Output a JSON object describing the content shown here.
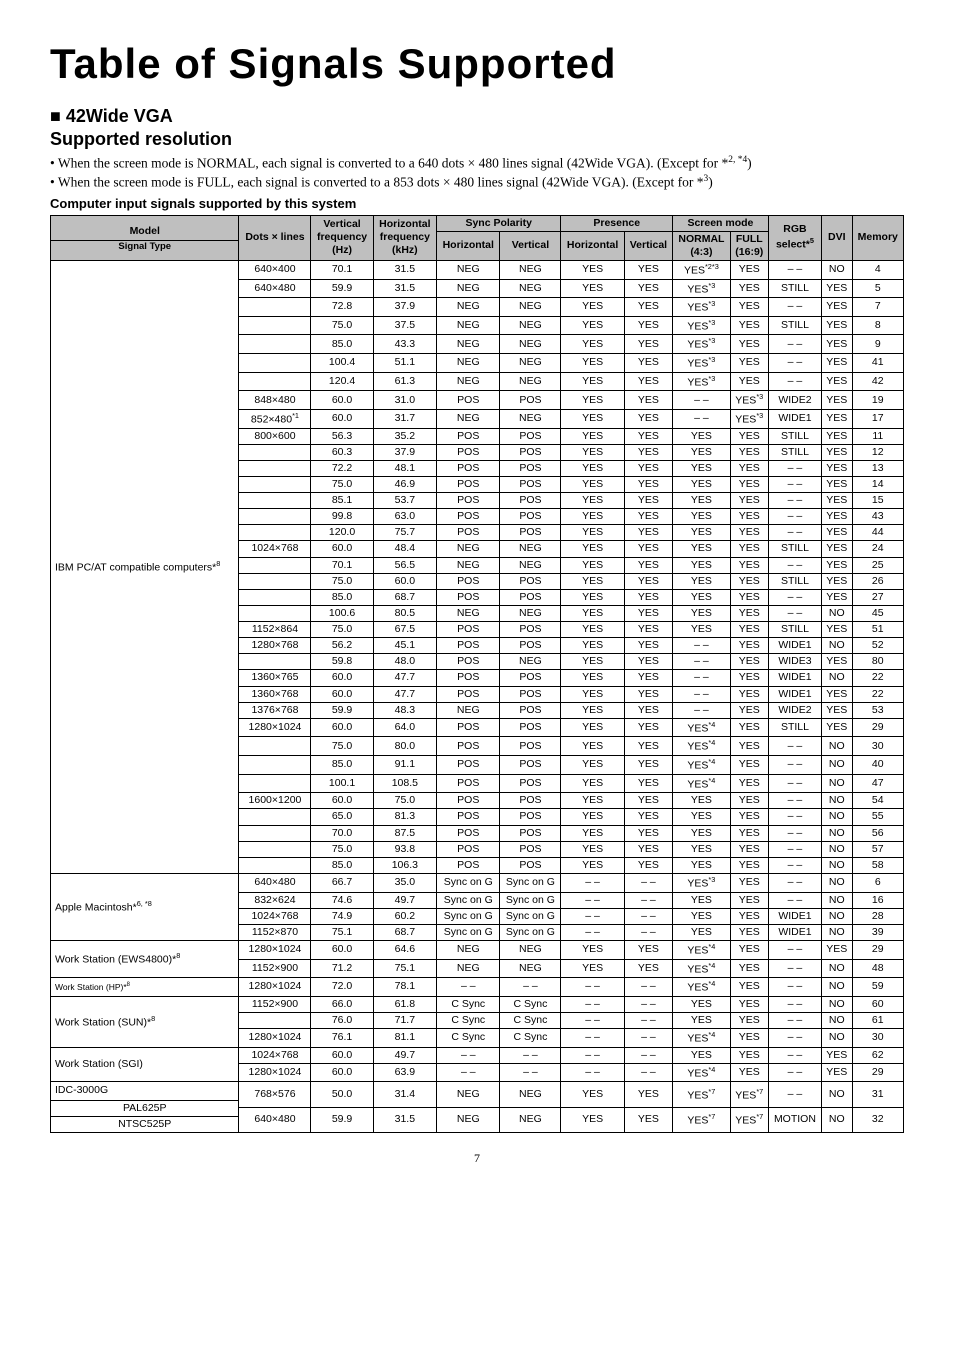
{
  "pageTitle": "Table of Signals Supported",
  "sectionHeading1": "■ 42Wide VGA",
  "sectionHeading2": "Supported resolution",
  "bullet1_a": "• When the screen mode is NORMAL, each signal is converted to a 640 dots × 480 lines signal (42Wide VGA). (Except for *",
  "bullet1_b": "2, *4",
  "bullet1_c": ")",
  "bullet2_a": "• When the screen mode is FULL, each signal is converted to a 853 dots × 480 lines signal  (42Wide VGA). (Except for *",
  "bullet2_b": "3",
  "bullet2_c": ")",
  "subline": "Computer input signals supported by this system",
  "headers": {
    "model": "Model",
    "signalType": "Signal Type",
    "dots": "Dots × lines",
    "vFreq": "Vertical",
    "vFreq2": "frequency",
    "vFreq3": "(Hz)",
    "hFreq": "Horizontal",
    "hFreq2": "frequency",
    "hFreq3": "(kHz)",
    "syncPol": "Sync Polarity",
    "syncH": "Horizontal",
    "syncV": "Vertical",
    "presence": "Presence",
    "presH": "Horizontal",
    "presV": "Vertical",
    "screenMode": "Screen mode",
    "normal": "NORMAL",
    "normal2": "(4:3)",
    "full": "FULL",
    "full2": "(16:9)",
    "rgb": "RGB",
    "rgb2a": "select*",
    "rgb2b": "5",
    "dvi": "DVI",
    "memory": "Memory"
  },
  "modelLabels": {
    "ibm": "IBM PC/AT compatible computers*",
    "ibmSup": "8",
    "apple": "Apple Macintosh*",
    "appleSup": "6, *8",
    "ws1": "Work Station (EWS4800)*",
    "ws1Sup": "8",
    "ws2": "Work Station (HP)*",
    "ws2Sup": "8",
    "ws3": "Work Station (SUN)*",
    "ws3Sup": "8",
    "ws4": "Work Station (SGI)",
    "idc": "IDC-3000G",
    "pal": "PAL625P",
    "ntsc": "NTSC525P"
  },
  "pageNum": "7",
  "rows": [
    {
      "dots": "640×400",
      "vf": "70.1",
      "hf": "31.5",
      "sh": "NEG",
      "sv": "NEG",
      "ph": "YES",
      "pv": "YES",
      "nr": "YES*2*3",
      "nrSup": true,
      "fl": "YES",
      "rgb": "– –",
      "dvi": "NO",
      "mem": "4"
    },
    {
      "dots": "640×480",
      "vf": "59.9",
      "hf": "31.5",
      "sh": "NEG",
      "sv": "NEG",
      "ph": "YES",
      "pv": "YES",
      "nr": "YES*3",
      "nrSup": true,
      "fl": "YES",
      "rgb": "STILL",
      "dvi": "YES",
      "mem": "5"
    },
    {
      "dots": "",
      "vf": "72.8",
      "hf": "37.9",
      "sh": "NEG",
      "sv": "NEG",
      "ph": "YES",
      "pv": "YES",
      "nr": "YES*3",
      "nrSup": true,
      "fl": "YES",
      "rgb": "– –",
      "dvi": "YES",
      "mem": "7"
    },
    {
      "dots": "",
      "vf": "75.0",
      "hf": "37.5",
      "sh": "NEG",
      "sv": "NEG",
      "ph": "YES",
      "pv": "YES",
      "nr": "YES*3",
      "nrSup": true,
      "fl": "YES",
      "rgb": "STILL",
      "dvi": "YES",
      "mem": "8"
    },
    {
      "dots": "",
      "vf": "85.0",
      "hf": "43.3",
      "sh": "NEG",
      "sv": "NEG",
      "ph": "YES",
      "pv": "YES",
      "nr": "YES*3",
      "nrSup": true,
      "fl": "YES",
      "rgb": "– –",
      "dvi": "YES",
      "mem": "9"
    },
    {
      "dots": "",
      "vf": "100.4",
      "hf": "51.1",
      "sh": "NEG",
      "sv": "NEG",
      "ph": "YES",
      "pv": "YES",
      "nr": "YES*3",
      "nrSup": true,
      "fl": "YES",
      "rgb": "– –",
      "dvi": "YES",
      "mem": "41"
    },
    {
      "dots": "",
      "vf": "120.4",
      "hf": "61.3",
      "sh": "NEG",
      "sv": "NEG",
      "ph": "YES",
      "pv": "YES",
      "nr": "YES*3",
      "nrSup": true,
      "fl": "YES",
      "rgb": "– –",
      "dvi": "YES",
      "mem": "42"
    },
    {
      "dots": "848×480",
      "vf": "60.0",
      "hf": "31.0",
      "sh": "POS",
      "sv": "POS",
      "ph": "YES",
      "pv": "YES",
      "nr": "– –",
      "fl": "YES*3",
      "flSup": true,
      "rgb": "WIDE2",
      "dvi": "YES",
      "mem": "19"
    },
    {
      "dots": "852×480*1",
      "dotsSup": true,
      "vf": "60.0",
      "hf": "31.7",
      "sh": "NEG",
      "sv": "NEG",
      "ph": "YES",
      "pv": "YES",
      "nr": "– –",
      "fl": "YES*3",
      "flSup": true,
      "rgb": "WIDE1",
      "dvi": "YES",
      "mem": "17"
    },
    {
      "dots": "800×600",
      "vf": "56.3",
      "hf": "35.2",
      "sh": "POS",
      "sv": "POS",
      "ph": "YES",
      "pv": "YES",
      "nr": "YES",
      "fl": "YES",
      "rgb": "STILL",
      "dvi": "YES",
      "mem": "11"
    },
    {
      "dots": "",
      "vf": "60.3",
      "hf": "37.9",
      "sh": "POS",
      "sv": "POS",
      "ph": "YES",
      "pv": "YES",
      "nr": "YES",
      "fl": "YES",
      "rgb": "STILL",
      "dvi": "YES",
      "mem": "12"
    },
    {
      "dots": "",
      "vf": "72.2",
      "hf": "48.1",
      "sh": "POS",
      "sv": "POS",
      "ph": "YES",
      "pv": "YES",
      "nr": "YES",
      "fl": "YES",
      "rgb": "– –",
      "dvi": "YES",
      "mem": "13"
    },
    {
      "dots": "",
      "vf": "75.0",
      "hf": "46.9",
      "sh": "POS",
      "sv": "POS",
      "ph": "YES",
      "pv": "YES",
      "nr": "YES",
      "fl": "YES",
      "rgb": "– –",
      "dvi": "YES",
      "mem": "14"
    },
    {
      "dots": "",
      "vf": "85.1",
      "hf": "53.7",
      "sh": "POS",
      "sv": "POS",
      "ph": "YES",
      "pv": "YES",
      "nr": "YES",
      "fl": "YES",
      "rgb": "– –",
      "dvi": "YES",
      "mem": "15"
    },
    {
      "dots": "",
      "vf": "99.8",
      "hf": "63.0",
      "sh": "POS",
      "sv": "POS",
      "ph": "YES",
      "pv": "YES",
      "nr": "YES",
      "fl": "YES",
      "rgb": "– –",
      "dvi": "YES",
      "mem": "43"
    },
    {
      "dots": "",
      "vf": "120.0",
      "hf": "75.7",
      "sh": "POS",
      "sv": "POS",
      "ph": "YES",
      "pv": "YES",
      "nr": "YES",
      "fl": "YES",
      "rgb": "– –",
      "dvi": "YES",
      "mem": "44"
    },
    {
      "dots": "1024×768",
      "vf": "60.0",
      "hf": "48.4",
      "sh": "NEG",
      "sv": "NEG",
      "ph": "YES",
      "pv": "YES",
      "nr": "YES",
      "fl": "YES",
      "rgb": "STILL",
      "dvi": "YES",
      "mem": "24"
    },
    {
      "dots": "",
      "vf": "70.1",
      "hf": "56.5",
      "sh": "NEG",
      "sv": "NEG",
      "ph": "YES",
      "pv": "YES",
      "nr": "YES",
      "fl": "YES",
      "rgb": "– –",
      "dvi": "YES",
      "mem": "25"
    },
    {
      "dots": "",
      "vf": "75.0",
      "hf": "60.0",
      "sh": "POS",
      "sv": "POS",
      "ph": "YES",
      "pv": "YES",
      "nr": "YES",
      "fl": "YES",
      "rgb": "STILL",
      "dvi": "YES",
      "mem": "26"
    },
    {
      "dots": "",
      "vf": "85.0",
      "hf": "68.7",
      "sh": "POS",
      "sv": "POS",
      "ph": "YES",
      "pv": "YES",
      "nr": "YES",
      "fl": "YES",
      "rgb": "– –",
      "dvi": "YES",
      "mem": "27"
    },
    {
      "dots": "",
      "vf": "100.6",
      "hf": "80.5",
      "sh": "NEG",
      "sv": "NEG",
      "ph": "YES",
      "pv": "YES",
      "nr": "YES",
      "fl": "YES",
      "rgb": "– –",
      "dvi": "NO",
      "mem": "45"
    },
    {
      "dots": "1152×864",
      "vf": "75.0",
      "hf": "67.5",
      "sh": "POS",
      "sv": "POS",
      "ph": "YES",
      "pv": "YES",
      "nr": "YES",
      "fl": "YES",
      "rgb": "STILL",
      "dvi": "YES",
      "mem": "51"
    },
    {
      "dots": "1280×768",
      "vf": "56.2",
      "hf": "45.1",
      "sh": "POS",
      "sv": "POS",
      "ph": "YES",
      "pv": "YES",
      "nr": "– –",
      "fl": "YES",
      "rgb": "WIDE1",
      "dvi": "NO",
      "mem": "52"
    },
    {
      "dots": "",
      "vf": "59.8",
      "hf": "48.0",
      "sh": "POS",
      "sv": "NEG",
      "ph": "YES",
      "pv": "YES",
      "nr": "– –",
      "fl": "YES",
      "rgb": "WIDE3",
      "dvi": "YES",
      "mem": "80"
    },
    {
      "dots": "1360×765",
      "vf": "60.0",
      "hf": "47.7",
      "sh": "POS",
      "sv": "POS",
      "ph": "YES",
      "pv": "YES",
      "nr": "– –",
      "fl": "YES",
      "rgb": "WIDE1",
      "dvi": "NO",
      "mem": "22"
    },
    {
      "dots": "1360×768",
      "vf": "60.0",
      "hf": "47.7",
      "sh": "POS",
      "sv": "POS",
      "ph": "YES",
      "pv": "YES",
      "nr": "– –",
      "fl": "YES",
      "rgb": "WIDE1",
      "dvi": "YES",
      "mem": "22"
    },
    {
      "dots": "1376×768",
      "vf": "59.9",
      "hf": "48.3",
      "sh": "NEG",
      "sv": "POS",
      "ph": "YES",
      "pv": "YES",
      "nr": "– –",
      "fl": "YES",
      "rgb": "WIDE2",
      "dvi": "YES",
      "mem": "53"
    },
    {
      "dots": "1280×1024",
      "vf": "60.0",
      "hf": "64.0",
      "sh": "POS",
      "sv": "POS",
      "ph": "YES",
      "pv": "YES",
      "nr": "YES*4",
      "nrSup": true,
      "fl": "YES",
      "rgb": "STILL",
      "dvi": "YES",
      "mem": "29"
    },
    {
      "dots": "",
      "vf": "75.0",
      "hf": "80.0",
      "sh": "POS",
      "sv": "POS",
      "ph": "YES",
      "pv": "YES",
      "nr": "YES*4",
      "nrSup": true,
      "fl": "YES",
      "rgb": "– –",
      "dvi": "NO",
      "mem": "30"
    },
    {
      "dots": "",
      "vf": "85.0",
      "hf": "91.1",
      "sh": "POS",
      "sv": "POS",
      "ph": "YES",
      "pv": "YES",
      "nr": "YES*4",
      "nrSup": true,
      "fl": "YES",
      "rgb": "– –",
      "dvi": "NO",
      "mem": "40"
    },
    {
      "dots": "",
      "vf": "100.1",
      "hf": "108.5",
      "sh": "POS",
      "sv": "POS",
      "ph": "YES",
      "pv": "YES",
      "nr": "YES*4",
      "nrSup": true,
      "fl": "YES",
      "rgb": "– –",
      "dvi": "NO",
      "mem": "47"
    },
    {
      "dots": "1600×1200",
      "vf": "60.0",
      "hf": "75.0",
      "sh": "POS",
      "sv": "POS",
      "ph": "YES",
      "pv": "YES",
      "nr": "YES",
      "fl": "YES",
      "rgb": "– –",
      "dvi": "NO",
      "mem": "54"
    },
    {
      "dots": "",
      "vf": "65.0",
      "hf": "81.3",
      "sh": "POS",
      "sv": "POS",
      "ph": "YES",
      "pv": "YES",
      "nr": "YES",
      "fl": "YES",
      "rgb": "– –",
      "dvi": "NO",
      "mem": "55"
    },
    {
      "dots": "",
      "vf": "70.0",
      "hf": "87.5",
      "sh": "POS",
      "sv": "POS",
      "ph": "YES",
      "pv": "YES",
      "nr": "YES",
      "fl": "YES",
      "rgb": "– –",
      "dvi": "NO",
      "mem": "56"
    },
    {
      "dots": "",
      "vf": "75.0",
      "hf": "93.8",
      "sh": "POS",
      "sv": "POS",
      "ph": "YES",
      "pv": "YES",
      "nr": "YES",
      "fl": "YES",
      "rgb": "– –",
      "dvi": "NO",
      "mem": "57"
    },
    {
      "dots": "",
      "vf": "85.0",
      "hf": "106.3",
      "sh": "POS",
      "sv": "POS",
      "ph": "YES",
      "pv": "YES",
      "nr": "YES",
      "fl": "YES",
      "rgb": "– –",
      "dvi": "NO",
      "mem": "58"
    },
    {
      "dots": "640×480",
      "vf": "66.7",
      "hf": "35.0",
      "sh": "Sync on G",
      "sv": "Sync on G",
      "ph": "– –",
      "pv": "– –",
      "nr": "YES*3",
      "nrSup": true,
      "fl": "YES",
      "rgb": "– –",
      "dvi": "NO",
      "mem": "6"
    },
    {
      "dots": "832×624",
      "vf": "74.6",
      "hf": "49.7",
      "sh": "Sync on G",
      "sv": "Sync on G",
      "ph": "– –",
      "pv": "– –",
      "nr": "YES",
      "fl": "YES",
      "rgb": "– –",
      "dvi": "NO",
      "mem": "16"
    },
    {
      "dots": "1024×768",
      "vf": "74.9",
      "hf": "60.2",
      "sh": "Sync on G",
      "sv": "Sync on G",
      "ph": "– –",
      "pv": "– –",
      "nr": "YES",
      "fl": "YES",
      "rgb": "WIDE1",
      "dvi": "NO",
      "mem": "28"
    },
    {
      "dots": "1152×870",
      "vf": "75.1",
      "hf": "68.7",
      "sh": "Sync on G",
      "sv": "Sync on G",
      "ph": "– –",
      "pv": "– –",
      "nr": "YES",
      "fl": "YES",
      "rgb": "WIDE1",
      "dvi": "NO",
      "mem": "39"
    },
    {
      "dots": "1280×1024",
      "vf": "60.0",
      "hf": "64.6",
      "sh": "NEG",
      "sv": "NEG",
      "ph": "YES",
      "pv": "YES",
      "nr": "YES*4",
      "nrSup": true,
      "fl": "YES",
      "rgb": "– –",
      "dvi": "YES",
      "mem": "29"
    },
    {
      "dots": "1152×900",
      "vf": "71.2",
      "hf": "75.1",
      "sh": "NEG",
      "sv": "NEG",
      "ph": "YES",
      "pv": "YES",
      "nr": "YES*4",
      "nrSup": true,
      "fl": "YES",
      "rgb": "– –",
      "dvi": "NO",
      "mem": "48"
    },
    {
      "dots": "1280×1024",
      "vf": "72.0",
      "hf": "78.1",
      "sh": "– –",
      "sv": "– –",
      "ph": "– –",
      "pv": "– –",
      "nr": "YES*4",
      "nrSup": true,
      "fl": "YES",
      "rgb": "– –",
      "dvi": "NO",
      "mem": "59"
    },
    {
      "dots": "1152×900",
      "vf": "66.0",
      "hf": "61.8",
      "sh": "C Sync",
      "sv": "C Sync",
      "ph": "– –",
      "pv": "– –",
      "nr": "YES",
      "fl": "YES",
      "rgb": "– –",
      "dvi": "NO",
      "mem": "60"
    },
    {
      "dots": "",
      "vf": "76.0",
      "hf": "71.7",
      "sh": "C Sync",
      "sv": "C Sync",
      "ph": "– –",
      "pv": "– –",
      "nr": "YES",
      "fl": "YES",
      "rgb": "– –",
      "dvi": "NO",
      "mem": "61"
    },
    {
      "dots": "1280×1024",
      "vf": "76.1",
      "hf": "81.1",
      "sh": "C Sync",
      "sv": "C Sync",
      "ph": "– –",
      "pv": "– –",
      "nr": "YES*4",
      "nrSup": true,
      "fl": "YES",
      "rgb": "– –",
      "dvi": "NO",
      "mem": "30"
    },
    {
      "dots": "1024×768",
      "vf": "60.0",
      "hf": "49.7",
      "sh": "– –",
      "sv": "– –",
      "ph": "– –",
      "pv": "– –",
      "nr": "YES",
      "fl": "YES",
      "rgb": "– –",
      "dvi": "YES",
      "mem": "62"
    },
    {
      "dots": "1280×1024",
      "vf": "60.0",
      "hf": "63.9",
      "sh": "– –",
      "sv": "– –",
      "ph": "– –",
      "pv": "– –",
      "nr": "YES*4",
      "nrSup": true,
      "fl": "YES",
      "rgb": "– –",
      "dvi": "YES",
      "mem": "29"
    },
    {
      "dots": "768×576",
      "vf": "50.0",
      "hf": "31.4",
      "sh": "NEG",
      "sv": "NEG",
      "ph": "YES",
      "pv": "YES",
      "nr": "YES*7",
      "nrSup": true,
      "fl": "YES*7",
      "flSup": true,
      "rgb": "– –",
      "dvi": "NO",
      "mem": "31"
    },
    {
      "dots": "640×480",
      "vf": "59.9",
      "hf": "31.5",
      "sh": "NEG",
      "sv": "NEG",
      "ph": "YES",
      "pv": "YES",
      "nr": "YES*7",
      "nrSup": true,
      "fl": "YES*7",
      "flSup": true,
      "rgb": "MOTION",
      "dvi": "NO",
      "mem": "32"
    }
  ]
}
